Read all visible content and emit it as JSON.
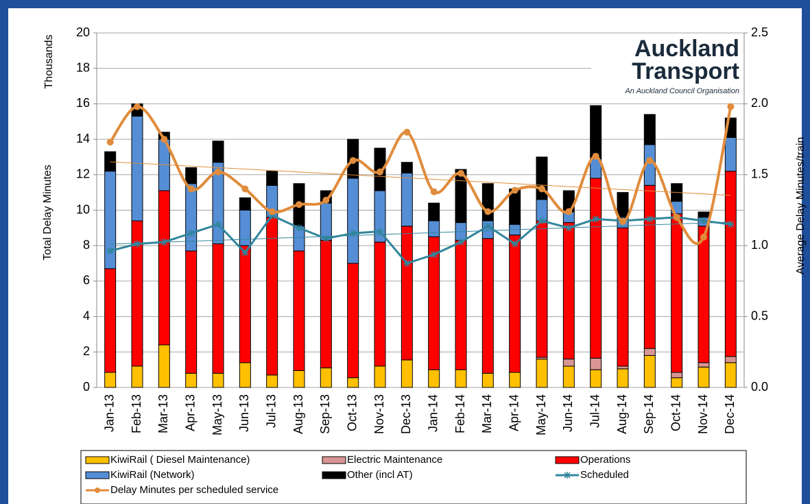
{
  "chart_data": {
    "type": "bar",
    "logo": {
      "title": "Auckland",
      "title2": "Transport",
      "subtitle": "An Auckland Council Organisation"
    },
    "ylabel": "Total Delay Minutes",
    "yunit": "Thousands",
    "y2label": "Average Delay Minutes/train",
    "categories": [
      "Jan-13",
      "Feb-13",
      "Mar-13",
      "Apr-13",
      "May-13",
      "Jun-13",
      "Jul-13",
      "Aug-13",
      "Sep-13",
      "Oct-13",
      "Nov-13",
      "Dec-13",
      "Jan-14",
      "Feb-14",
      "Mar-14",
      "Apr-14",
      "May-14",
      "Jun-14",
      "Jul-14",
      "Aug-14",
      "Sep-14",
      "Oct-14",
      "Nov-14",
      "Dec-14"
    ],
    "stacked": true,
    "trendlines": true,
    "ylim": [
      0,
      20
    ],
    "yticks": [
      0,
      2,
      4,
      6,
      8,
      10,
      12,
      14,
      16,
      18,
      20
    ],
    "y2lim": [
      0,
      2.5
    ],
    "y2ticks": [
      {
        "value": 0,
        "label": "0.0"
      },
      0.5,
      {
        "value": 1,
        "label": "1.0"
      },
      1.5,
      {
        "value": 2,
        "label": "2.0"
      },
      2.5
    ],
    "grid": true,
    "series": [
      {
        "name": "KiwiRail ( Diesel Maintenance)",
        "kind": "bar",
        "color": "#ffc000",
        "values": [
          0.85,
          1.2,
          2.4,
          0.8,
          0.8,
          1.4,
          0.7,
          0.95,
          1.1,
          0.55,
          1.2,
          1.55,
          1.0,
          1.0,
          0.8,
          0.85,
          1.6,
          1.2,
          1.0,
          1.05,
          1.8,
          0.55,
          1.15,
          1.4
        ]
      },
      {
        "name": "Electric Maintenance",
        "kind": "bar",
        "color": "#d99594",
        "values": [
          0,
          0,
          0,
          0,
          0,
          0,
          0,
          0,
          0,
          0,
          0,
          0,
          0,
          0,
          0,
          0,
          0.1,
          0.4,
          0.65,
          0.15,
          0.4,
          0.3,
          0.25,
          0.35
        ]
      },
      {
        "name": "Operations",
        "kind": "bar",
        "color": "#ff0000",
        "values": [
          5.85,
          8.2,
          8.7,
          6.9,
          7.3,
          6.6,
          8.9,
          6.75,
          7.2,
          6.45,
          7.0,
          7.55,
          7.5,
          7.3,
          7.6,
          7.75,
          7.7,
          7.7,
          10.15,
          7.8,
          9.2,
          8.95,
          7.7,
          10.45
        ]
      },
      {
        "name": "KiwiRail (Network)",
        "kind": "bar",
        "color": "#558ed5",
        "values": [
          5.5,
          5.9,
          2.9,
          3.8,
          4.6,
          2.0,
          1.8,
          1.4,
          2.1,
          4.8,
          2.9,
          3.0,
          0.9,
          1.0,
          1.0,
          0.6,
          1.2,
          0.6,
          1.1,
          0.6,
          2.3,
          0.7,
          0.5,
          1.9
        ]
      },
      {
        "name": "Other (incl AT)",
        "kind": "bar",
        "color": "#000000",
        "values": [
          1.1,
          0.7,
          0.4,
          0.9,
          1.2,
          0.7,
          0.8,
          2.4,
          0.7,
          2.2,
          2.4,
          0.6,
          1.0,
          3.0,
          2.1,
          2.0,
          2.4,
          1.2,
          3.0,
          1.4,
          1.7,
          1.0,
          0.3,
          1.1
        ]
      },
      {
        "name": "Scheduled",
        "kind": "line",
        "marker": "star",
        "color": "#31859c",
        "values": [
          7.7,
          8.1,
          8.2,
          8.7,
          9.2,
          7.6,
          9.7,
          9.0,
          8.4,
          8.7,
          8.8,
          7.0,
          7.5,
          8.2,
          9.1,
          8.1,
          9.4,
          9.0,
          9.5,
          9.4,
          9.5,
          9.6,
          9.4,
          9.2
        ]
      },
      {
        "name": "Delay Minutes per scheduled service",
        "kind": "line",
        "marker": "circle",
        "axis": "y2",
        "color": "#e08c3c",
        "values": [
          1.73,
          1.98,
          1.75,
          1.4,
          1.52,
          1.4,
          1.24,
          1.29,
          1.32,
          1.6,
          1.52,
          1.8,
          1.38,
          1.51,
          1.24,
          1.39,
          1.4,
          1.24,
          1.63,
          1.17,
          1.6,
          1.2,
          1.06,
          1.98
        ]
      }
    ]
  }
}
